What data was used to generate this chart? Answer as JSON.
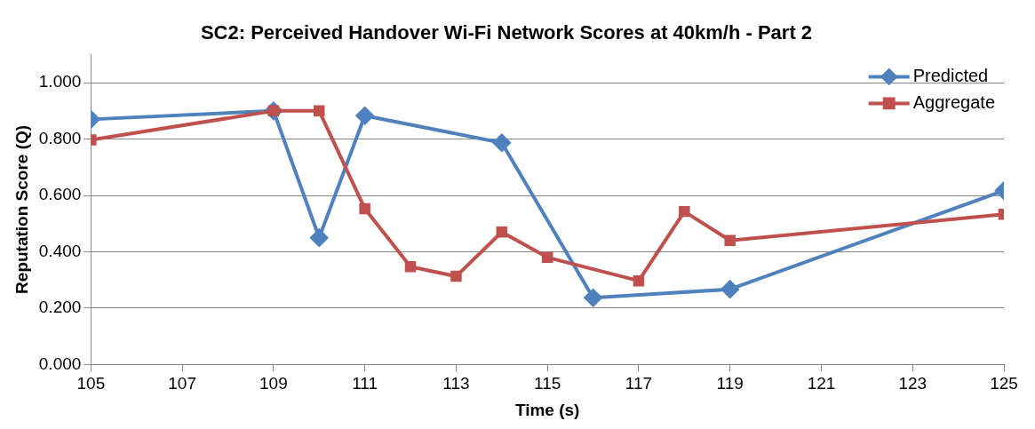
{
  "chart_data": {
    "type": "line",
    "title": "SC2: Perceived Handover Wi-Fi Network Scores at 40km/h - Part 2",
    "xlabel": "Time (s)",
    "ylabel": "Reputation Score (Q)",
    "xlim": [
      105,
      125
    ],
    "xticks": [
      105,
      107,
      109,
      111,
      113,
      115,
      117,
      119,
      121,
      123,
      125
    ],
    "ylim": [
      0,
      1.1
    ],
    "yticks": [
      {
        "value": 0,
        "label": "0.000"
      },
      {
        "value": 0.2,
        "label": "0.200"
      },
      {
        "value": 0.4,
        "label": "0.400"
      },
      {
        "value": 0.6,
        "label": "0.600"
      },
      {
        "value": 0.8,
        "label": "0.800"
      },
      {
        "value": 1,
        "label": "1.000"
      }
    ],
    "grid": "y",
    "legend": "top right",
    "line_style": "solid",
    "series": [
      {
        "name": "Predicted",
        "color": "#4f81bd",
        "marker": "diamond",
        "x": [
          105,
          109,
          110,
          111,
          114,
          116,
          119,
          125
        ],
        "values": [
          0.87,
          0.9,
          0.45,
          0.883,
          0.787,
          0.237,
          0.267,
          0.617
        ]
      },
      {
        "name": "Aggregate",
        "color": "#c0504d",
        "marker": "square",
        "x": [
          105,
          109,
          110,
          111,
          112,
          113,
          114,
          115,
          117,
          118,
          119,
          125
        ],
        "values": [
          0.797,
          0.9,
          0.9,
          0.553,
          0.347,
          0.313,
          0.47,
          0.38,
          0.297,
          0.543,
          0.44,
          0.533
        ]
      }
    ]
  }
}
